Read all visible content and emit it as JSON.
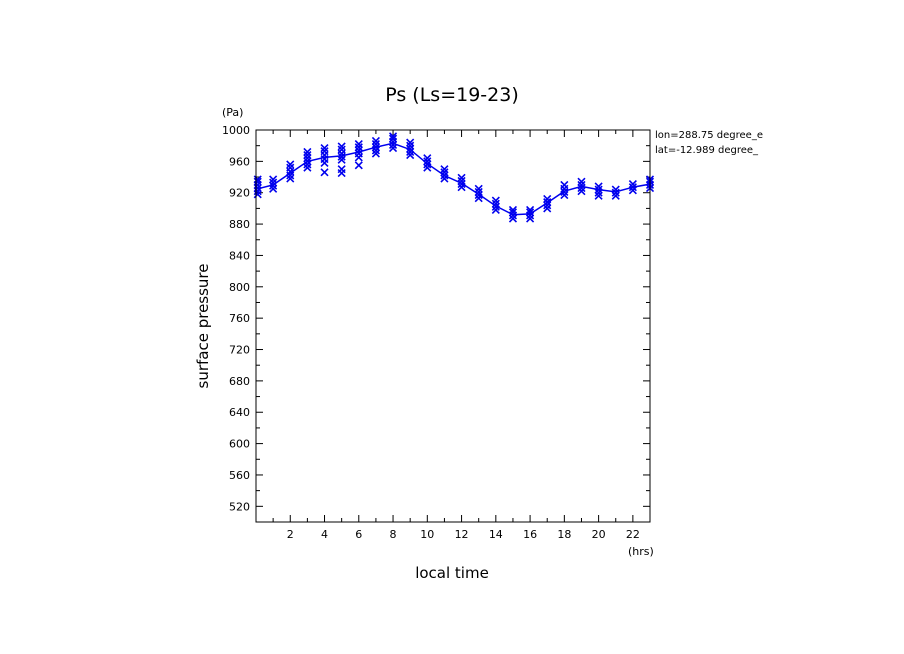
{
  "chart_data": {
    "type": "scatter",
    "title": "Ps (Ls=19-23)",
    "xlabel": "local time",
    "ylabel": "surface pressure",
    "xunit": "(hrs)",
    "yunit": "(Pa)",
    "xlim": [
      0,
      23
    ],
    "ylim": [
      500,
      1000
    ],
    "xticks": [
      2,
      4,
      6,
      8,
      10,
      12,
      14,
      16,
      18,
      20,
      22
    ],
    "yticks": [
      520,
      560,
      600,
      640,
      680,
      720,
      760,
      800,
      840,
      880,
      920,
      960,
      1000
    ],
    "annotations": [
      "lon=288.75 degree_e",
      "lat=-12.989 degree_"
    ],
    "color": "#0000ee",
    "mean_line": {
      "x": [
        0.1,
        1,
        2,
        3,
        4,
        5,
        6,
        7,
        8,
        9,
        10,
        11,
        12,
        13,
        14,
        15,
        16,
        17,
        18,
        19,
        20,
        21,
        22,
        23
      ],
      "y": [
        925,
        930,
        945,
        960,
        965,
        967,
        972,
        978,
        983,
        975,
        957,
        942,
        932,
        918,
        903,
        892,
        893,
        907,
        922,
        928,
        924,
        921,
        927,
        931
      ]
    },
    "samples": {
      "x": [
        0.1,
        1,
        2,
        3,
        4,
        5,
        6,
        7,
        8,
        9,
        10,
        11,
        12,
        13,
        14,
        15,
        16,
        17,
        18,
        19,
        20,
        21,
        22,
        23
      ],
      "y": [
        [
          918,
          922,
          926,
          930,
          934,
          937
        ],
        [
          925,
          929,
          933,
          937
        ],
        [
          938,
          942,
          947,
          952,
          956
        ],
        [
          952,
          956,
          960,
          964,
          968,
          972
        ],
        [
          946,
          958,
          963,
          968,
          973,
          977
        ],
        [
          945,
          950,
          962,
          966,
          970,
          975,
          979
        ],
        [
          955,
          965,
          970,
          974,
          978,
          982
        ],
        [
          970,
          974,
          978,
          982,
          986
        ],
        [
          977,
          981,
          985,
          989,
          992
        ],
        [
          968,
          972,
          976,
          980,
          984
        ],
        [
          952,
          956,
          960,
          964
        ],
        [
          938,
          942,
          946,
          950
        ],
        [
          927,
          931,
          935,
          939
        ],
        [
          913,
          917,
          921,
          925
        ],
        [
          898,
          902,
          906,
          910
        ],
        [
          887,
          891,
          895,
          898
        ],
        [
          887,
          891,
          895,
          898
        ],
        [
          900,
          904,
          908,
          912
        ],
        [
          917,
          921,
          925,
          930
        ],
        [
          922,
          926,
          930,
          934
        ],
        [
          916,
          920,
          924,
          928
        ],
        [
          916,
          920,
          924
        ],
        [
          923,
          927,
          931
        ],
        [
          926,
          930,
          934,
          937
        ]
      ]
    }
  }
}
